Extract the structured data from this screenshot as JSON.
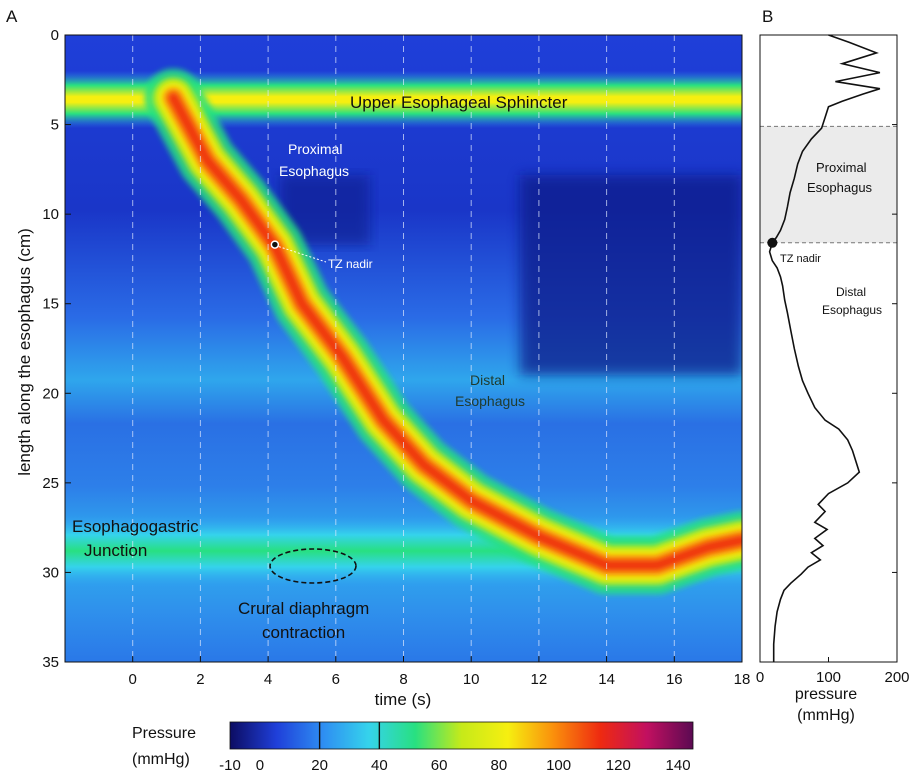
{
  "panels": {
    "a": "A",
    "b": "B"
  },
  "chart_data": [
    {
      "type": "heatmap",
      "panel": "A",
      "xlabel": "time (s)",
      "ylabel": "length along the esophagus (cm)",
      "xlim": [
        -2,
        18
      ],
      "ylim": [
        35,
        0
      ],
      "x_ticks": [
        0,
        2,
        4,
        6,
        8,
        10,
        12,
        14,
        16,
        18
      ],
      "y_ticks": [
        0,
        5,
        10,
        15,
        20,
        25,
        30,
        35
      ],
      "colorbar": {
        "title_line1": "Pressure",
        "title_line2": "(mmHg)",
        "range": [
          -10,
          145
        ],
        "ticks": [
          "-10",
          "0",
          "20",
          "40",
          "60",
          "80",
          "100",
          "120",
          "140"
        ],
        "tick_values": [
          -10,
          0,
          20,
          40,
          60,
          80,
          100,
          120,
          140
        ],
        "colors": [
          "#0c0c62",
          "#1f3fd9",
          "#2e8df2",
          "#35d3ec",
          "#28e081",
          "#c6ea19",
          "#f6ef10",
          "#fa8e0c",
          "#ee2a10",
          "#c21060",
          "#5b0a52"
        ],
        "marker_values": [
          20,
          40
        ]
      },
      "bands": [
        {
          "name": "Upper Esophageal Sphincter",
          "y_center": 3.6,
          "half_width": 1.0,
          "peak_mmHg": 70
        },
        {
          "name": "Esophagogastric Junction",
          "y_center": 28.8,
          "half_width": 1.4,
          "peak_mmHg": 40
        }
      ],
      "peristaltic_wave": [
        {
          "t": 1.2,
          "y": 3.5
        },
        {
          "t": 2.2,
          "y": 7.0
        },
        {
          "t": 3.2,
          "y": 9.2
        },
        {
          "t": 4.2,
          "y": 11.8
        },
        {
          "t": 5.0,
          "y": 15.0
        },
        {
          "t": 6.2,
          "y": 18.0
        },
        {
          "t": 7.4,
          "y": 21.5
        },
        {
          "t": 8.6,
          "y": 24.0
        },
        {
          "t": 10.0,
          "y": 26.0
        },
        {
          "t": 12.0,
          "y": 28.0
        },
        {
          "t": 14.0,
          "y": 29.6
        },
        {
          "t": 15.5,
          "y": 29.6
        },
        {
          "t": 17.0,
          "y": 28.6
        },
        {
          "t": 18.0,
          "y": 28.2
        }
      ],
      "annotations": {
        "ues": "Upper Esophageal Sphincter",
        "proximal_1": "Proximal",
        "proximal_2": "Esophagus",
        "tz_nadir": "TZ nadir",
        "distal_1": "Distal",
        "distal_2": "Esophagus",
        "egj_1": "Esophagogastric",
        "egj_2": "Junction",
        "crural_1": "Crural diaphragm",
        "crural_2": "contraction"
      },
      "tz_nadir_point": {
        "t": 4.2,
        "y": 11.7
      }
    },
    {
      "type": "line",
      "panel": "B",
      "xlabel_line1": "pressure",
      "xlabel_line2": "(mmHg)",
      "xlim": [
        0,
        200
      ],
      "ylim": [
        35,
        0
      ],
      "x_ticks": [
        0,
        100,
        200
      ],
      "annotations": {
        "proximal_1": "Proximal",
        "proximal_2": "Esophagus",
        "tz_nadir": "TZ nadir",
        "distal_1": "Distal",
        "distal_2": "Esophagus"
      },
      "proximal_region": [
        5.1,
        11.6
      ],
      "tz_nadir_point": {
        "pressure": 18,
        "length": 11.6
      },
      "profile": [
        [
          100,
          0
        ],
        [
          130,
          0.4
        ],
        [
          170,
          1.0
        ],
        [
          120,
          1.6
        ],
        [
          175,
          2.1
        ],
        [
          110,
          2.6
        ],
        [
          175,
          3.0
        ],
        [
          150,
          3.3
        ],
        [
          120,
          3.7
        ],
        [
          100,
          4.0
        ],
        [
          95,
          4.6
        ],
        [
          90,
          5.2
        ],
        [
          75,
          5.8
        ],
        [
          62,
          6.5
        ],
        [
          55,
          7.2
        ],
        [
          50,
          8.0
        ],
        [
          44,
          8.8
        ],
        [
          40,
          9.6
        ],
        [
          36,
          10.3
        ],
        [
          30,
          10.9
        ],
        [
          24,
          11.3
        ],
        [
          18,
          11.6
        ],
        [
          14,
          12.1
        ],
        [
          18,
          12.6
        ],
        [
          25,
          13.0
        ],
        [
          30,
          13.5
        ],
        [
          33,
          14.0
        ],
        [
          36,
          14.8
        ],
        [
          40,
          15.5
        ],
        [
          45,
          16.5
        ],
        [
          50,
          17.5
        ],
        [
          56,
          18.5
        ],
        [
          62,
          19.3
        ],
        [
          70,
          20.0
        ],
        [
          80,
          20.8
        ],
        [
          95,
          21.5
        ],
        [
          115,
          22.0
        ],
        [
          128,
          22.6
        ],
        [
          135,
          23.2
        ],
        [
          140,
          23.8
        ],
        [
          145,
          24.4
        ],
        [
          128,
          25.0
        ],
        [
          100,
          25.6
        ],
        [
          85,
          26.2
        ],
        [
          95,
          26.6
        ],
        [
          80,
          27.2
        ],
        [
          98,
          27.6
        ],
        [
          80,
          28.1
        ],
        [
          92,
          28.5
        ],
        [
          75,
          28.9
        ],
        [
          88,
          29.3
        ],
        [
          70,
          29.7
        ],
        [
          60,
          30.1
        ],
        [
          45,
          30.6
        ],
        [
          35,
          31.0
        ],
        [
          30,
          31.5
        ],
        [
          25,
          32.2
        ],
        [
          22,
          33.0
        ],
        [
          20,
          34.0
        ],
        [
          20,
          35.0
        ]
      ]
    }
  ]
}
